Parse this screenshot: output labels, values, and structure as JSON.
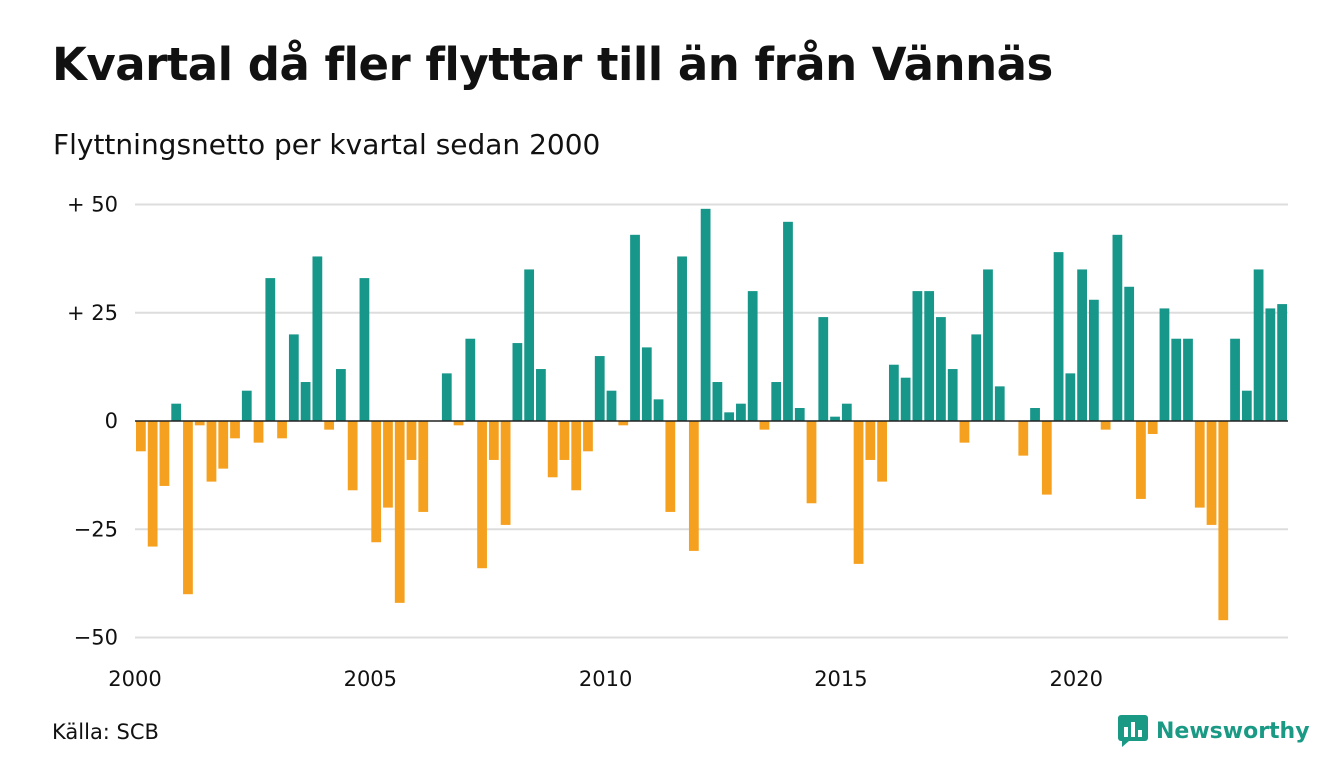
{
  "title": "Kvartal då fler flyttar till än från Vännäs",
  "subtitle": "Flyttningsnetto per kvartal sedan 2000",
  "source": "Källa: SCB",
  "brand": {
    "name": "Newsworthy",
    "icon": "newsworthy-logo-icon"
  },
  "colors": {
    "positive": "#17968a",
    "negative": "#f5a11f",
    "grid": "#dddddd",
    "zero_line": "#222222"
  },
  "chart_data": {
    "type": "bar",
    "title": "Kvartal då fler flyttar till än från Vännäs",
    "subtitle": "Flyttningsnetto per kvartal sedan 2000",
    "ylim": [
      -55,
      52
    ],
    "y_ticks": [
      {
        "value": 50,
        "label": "+ 50"
      },
      {
        "value": 25,
        "label": "+ 25"
      },
      {
        "value": 0,
        "label": "0"
      },
      {
        "value": -25,
        "label": "−25"
      },
      {
        "value": -50,
        "label": "−50"
      }
    ],
    "x_ticks": [
      "2000",
      "2005",
      "2010",
      "2015",
      "2020"
    ],
    "grid": true,
    "start_quarter": "2000Q1",
    "values": [
      -7,
      -29,
      -15,
      4,
      -40,
      -1,
      -14,
      -11,
      -4,
      7,
      -5,
      33,
      -4,
      20,
      9,
      38,
      -2,
      12,
      -16,
      33,
      -28,
      -20,
      -42,
      -9,
      -21,
      0,
      11,
      -1,
      19,
      -34,
      -9,
      -24,
      18,
      35,
      12,
      -13,
      -9,
      -16,
      -7,
      15,
      7,
      -1,
      43,
      17,
      5,
      -21,
      38,
      -30,
      49,
      9,
      2,
      4,
      30,
      -2,
      9,
      46,
      3,
      -19,
      24,
      1,
      4,
      -33,
      -9,
      -14,
      13,
      10,
      30,
      30,
      24,
      12,
      -5,
      20,
      35,
      8,
      0,
      -8,
      3,
      -17,
      39,
      11,
      35,
      28,
      -2,
      43,
      31,
      -18,
      -3,
      26,
      19,
      19,
      -20,
      -24,
      -46,
      19,
      7,
      35,
      26,
      27
    ]
  }
}
